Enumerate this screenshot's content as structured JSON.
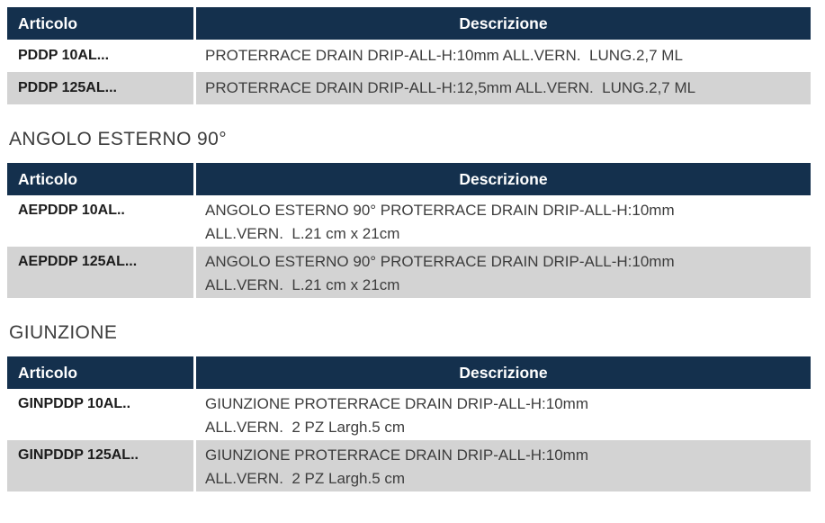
{
  "colors": {
    "header_bg": "#14304d",
    "header_text": "#ffffff",
    "alt_row_bg": "#d3d3d3",
    "row_bg": "#ffffff",
    "code_text": "#1c1c1c",
    "description_text": "#3d3d3d",
    "heading_text": "#3d3d3d"
  },
  "sections": [
    {
      "heading": "",
      "table": {
        "headers": [
          "Articolo",
          "Descrizione"
        ],
        "rows": [
          {
            "articolo": "PDDP 10AL...",
            "descrizione_lines": [
              "PROTERRACE DRAIN DRIP-ALL-H:10mm ALL.VERN.  LUNG.2,7 ML"
            ]
          },
          {
            "articolo": "PDDP 125AL...",
            "descrizione_lines": [
              "PROTERRACE DRAIN DRIP-ALL-H:12,5mm ALL.VERN.  LUNG.2,7 ML"
            ]
          }
        ]
      }
    },
    {
      "heading": "ANGOLO ESTERNO 90°",
      "table": {
        "headers": [
          "Articolo",
          "Descrizione"
        ],
        "rows": [
          {
            "articolo": "AEPDDP 10AL..",
            "descrizione_lines": [
              "ANGOLO ESTERNO 90° PROTERRACE DRAIN DRIP-ALL-H:10mm",
              "ALL.VERN.  L.21 cm x 21cm"
            ]
          },
          {
            "articolo": "AEPDDP 125AL...",
            "descrizione_lines": [
              "ANGOLO ESTERNO 90° PROTERRACE DRAIN DRIP-ALL-H:10mm",
              "ALL.VERN.  L.21 cm x 21cm"
            ]
          }
        ]
      }
    },
    {
      "heading": "GIUNZIONE",
      "table": {
        "headers": [
          "Articolo",
          "Descrizione"
        ],
        "rows": [
          {
            "articolo": "GINPDDP 10AL..",
            "descrizione_lines": [
              "GIUNZIONE PROTERRACE DRAIN DRIP-ALL-H:10mm",
              "ALL.VERN.  2 PZ Largh.5 cm"
            ]
          },
          {
            "articolo": "GINPDDP 125AL..",
            "descrizione_lines": [
              "GIUNZIONE PROTERRACE DRAIN DRIP-ALL-H:10mm",
              "ALL.VERN.  2 PZ Largh.5 cm"
            ]
          }
        ]
      }
    }
  ]
}
